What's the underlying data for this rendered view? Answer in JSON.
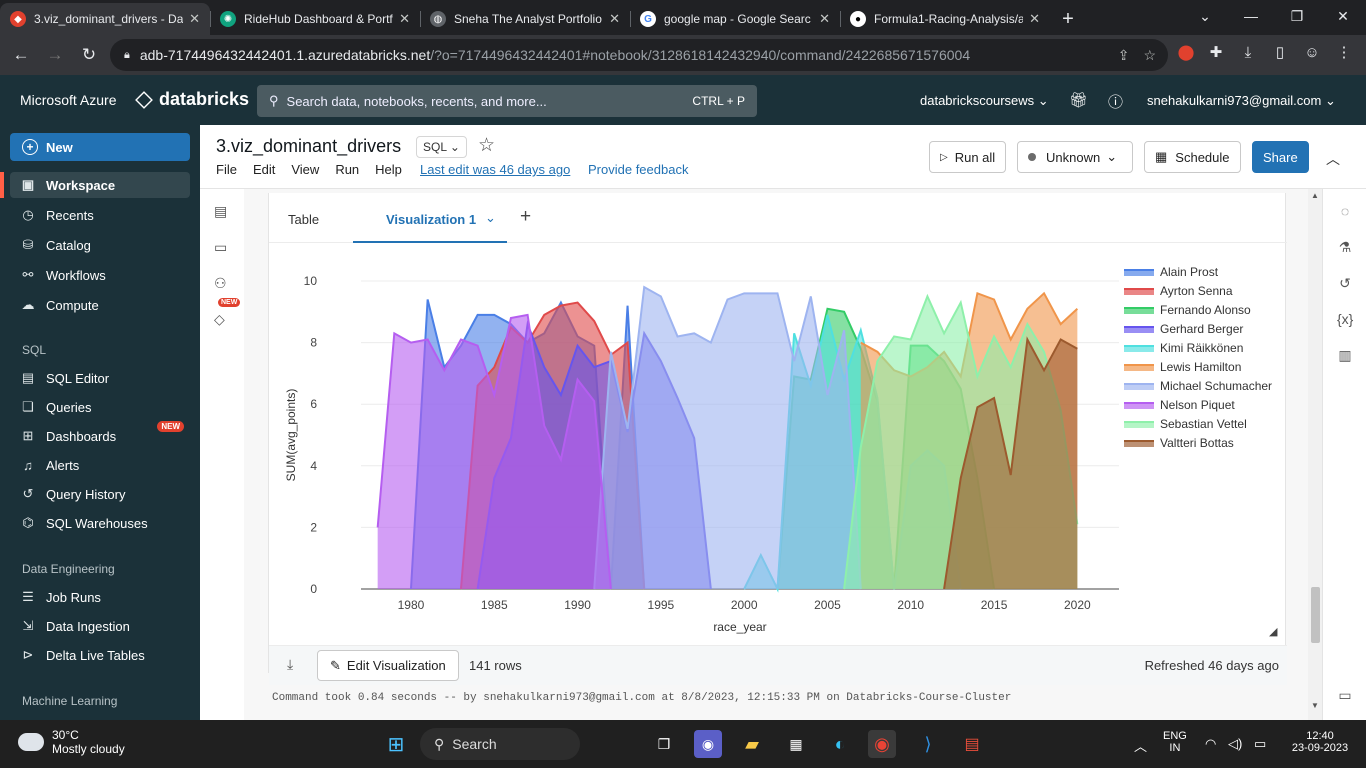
{
  "browser": {
    "tabs": [
      {
        "title": "3.viz_dominant_drivers - Dat",
        "icon": "databricks-logo",
        "color": "#e1412e"
      },
      {
        "title": "RideHub Dashboard & Portf",
        "icon": "openai-logo",
        "color": "#10a37f"
      },
      {
        "title": "Sneha The Analyst Portfolio",
        "icon": "globe-icon",
        "color": "#5f6368"
      },
      {
        "title": "google map - Google Searc",
        "icon": "google-logo",
        "color": "#4285f4"
      },
      {
        "title": "Formula1-Racing-Analysis/a",
        "icon": "github-logo",
        "color": "#ffffff"
      }
    ],
    "url_host": "adb-7174496432442401.1.azuredatabricks.net",
    "url_path": "/?o=7174496432442401#notebook/3128618142432940/command/2422685671576004"
  },
  "topbar": {
    "azure": "Microsoft Azure",
    "databricks": "databricks",
    "search_placeholder": "Search data, notebooks, recents, and more...",
    "search_shortcut": "CTRL + P",
    "workspace": "databrickscoursews",
    "user": "snehakulkarni973@gmail.com"
  },
  "sidebar": {
    "new_label": "New",
    "main_items": [
      {
        "label": "Workspace",
        "icon": "workspace-icon"
      },
      {
        "label": "Recents",
        "icon": "clock-icon"
      },
      {
        "label": "Catalog",
        "icon": "catalog-icon"
      },
      {
        "label": "Workflows",
        "icon": "workflows-icon"
      },
      {
        "label": "Compute",
        "icon": "cloud-icon"
      }
    ],
    "sql_heading": "SQL",
    "sql_items": [
      {
        "label": "SQL Editor"
      },
      {
        "label": "Queries"
      },
      {
        "label": "Dashboards",
        "badge": "NEW"
      },
      {
        "label": "Alerts"
      },
      {
        "label": "Query History"
      },
      {
        "label": "SQL Warehouses"
      }
    ],
    "de_heading": "Data Engineering",
    "de_items": [
      {
        "label": "Job Runs"
      },
      {
        "label": "Data Ingestion"
      },
      {
        "label": "Delta Live Tables"
      }
    ],
    "ml_heading": "Machine Learning"
  },
  "notebook": {
    "title": "3.viz_dominant_drivers",
    "language": "SQL",
    "menu": [
      "File",
      "Edit",
      "View",
      "Run",
      "Help"
    ],
    "last_edit": "Last edit was 46 days ago",
    "feedback": "Provide feedback",
    "run_all": "Run all",
    "cluster": "Unknown",
    "schedule": "Schedule",
    "share": "Share",
    "left_badge": "NEW"
  },
  "cell": {
    "tab_table": "Table",
    "tab_viz": "Visualization 1",
    "edit_viz": "Edit Visualization",
    "rows": "141 rows",
    "refreshed": "Refreshed 46 days ago",
    "command_line": "Command took 0.84 seconds -- by snehakulkarni973@gmail.com at 8/8/2023, 12:15:33 PM on Databricks-Course-Cluster"
  },
  "chart_data": {
    "type": "area",
    "xlabel": "race_year",
    "ylabel": "SUM(avg_points)",
    "xlim": [
      1977,
      2022.5
    ],
    "ylim": [
      0,
      10
    ],
    "x_ticks": [
      1980,
      1985,
      1990,
      1995,
      2000,
      2005,
      2010,
      2015,
      2020
    ],
    "y_ticks": [
      0,
      2,
      4,
      6,
      8,
      10
    ],
    "grid": true,
    "legend_position": "right",
    "series": [
      {
        "name": "Alain Prost",
        "color": "#4a7fe6",
        "points": [
          [
            1980,
            0
          ],
          [
            1981,
            9.4
          ],
          [
            1982,
            7.2
          ],
          [
            1983,
            7.9
          ],
          [
            1984,
            8.9
          ],
          [
            1985,
            8.9
          ],
          [
            1986,
            8.6
          ],
          [
            1987,
            8.0
          ],
          [
            1988,
            8.3
          ],
          [
            1989,
            9.3
          ],
          [
            1990,
            8.2
          ],
          [
            1991,
            7.9
          ],
          [
            1992,
            0
          ],
          [
            1993,
            9.2
          ],
          [
            1994,
            0
          ]
        ]
      },
      {
        "name": "Ayrton Senna",
        "color": "#e04a4a",
        "points": [
          [
            1983,
            0
          ],
          [
            1984,
            6.6
          ],
          [
            1985,
            7.2
          ],
          [
            1986,
            8.5
          ],
          [
            1987,
            8.0
          ],
          [
            1988,
            8.9
          ],
          [
            1989,
            9.2
          ],
          [
            1990,
            9.3
          ],
          [
            1991,
            8.7
          ],
          [
            1992,
            7.6
          ],
          [
            1993,
            8.0
          ],
          [
            1994,
            0
          ]
        ]
      },
      {
        "name": "Fernando Alonso",
        "color": "#33cc66",
        "points": [
          [
            2002,
            0
          ],
          [
            2003,
            6.9
          ],
          [
            2004,
            6.8
          ],
          [
            2005,
            9.1
          ],
          [
            2006,
            9.0
          ],
          [
            2007,
            7.8
          ],
          [
            2008,
            6.1
          ],
          [
            2009,
            0
          ],
          [
            2010,
            7.9
          ],
          [
            2011,
            7.9
          ],
          [
            2012,
            7.4
          ],
          [
            2013,
            6.5
          ],
          [
            2014,
            3.6
          ],
          [
            2015,
            0
          ]
        ]
      },
      {
        "name": "Gerhard Berger",
        "color": "#6655ee",
        "points": [
          [
            1984,
            0
          ],
          [
            1985,
            3.6
          ],
          [
            1986,
            4.9
          ],
          [
            1987,
            8.6
          ],
          [
            1988,
            7.2
          ],
          [
            1989,
            6.3
          ],
          [
            1990,
            7.9
          ],
          [
            1991,
            7.2
          ],
          [
            1992,
            7.4
          ],
          [
            1993,
            5.1
          ],
          [
            1994,
            8.3
          ],
          [
            1995,
            7.4
          ],
          [
            1996,
            6.2
          ],
          [
            1997,
            4.9
          ],
          [
            1998,
            0
          ]
        ]
      },
      {
        "name": "Kimi Räikkönen",
        "color": "#4fe0e0",
        "points": [
          [
            2000,
            0
          ],
          [
            2001,
            1.1
          ],
          [
            2002,
            0
          ],
          [
            2003,
            8.3
          ],
          [
            2004,
            6.6
          ],
          [
            2005,
            8.9
          ],
          [
            2006,
            6.8
          ],
          [
            2007,
            8.4
          ],
          [
            2008,
            6.2
          ],
          [
            2009,
            0
          ],
          [
            2010,
            4.0
          ],
          [
            2011,
            4.5
          ],
          [
            2012,
            4.0
          ],
          [
            2013,
            0
          ]
        ]
      },
      {
        "name": "Lewis Hamilton",
        "color": "#f0954a",
        "points": [
          [
            2007,
            8.0
          ],
          [
            2008,
            7.7
          ],
          [
            2009,
            7.1
          ],
          [
            2010,
            6.9
          ],
          [
            2011,
            7.2
          ],
          [
            2012,
            7.7
          ],
          [
            2013,
            6.9
          ],
          [
            2014,
            9.6
          ],
          [
            2015,
            9.4
          ],
          [
            2016,
            8.1
          ],
          [
            2017,
            9.1
          ],
          [
            2018,
            9.6
          ],
          [
            2019,
            8.6
          ],
          [
            2020,
            9.1
          ]
        ]
      },
      {
        "name": "Michael Schumacher",
        "color": "#9eb4f0",
        "points": [
          [
            1991,
            0
          ],
          [
            1992,
            7.7
          ],
          [
            1993,
            5.2
          ],
          [
            1994,
            9.8
          ],
          [
            1995,
            9.5
          ],
          [
            1996,
            8.2
          ],
          [
            1997,
            8.3
          ],
          [
            1998,
            8.0
          ],
          [
            1999,
            9.4
          ],
          [
            2000,
            9.6
          ],
          [
            2001,
            9.6
          ],
          [
            2002,
            9.6
          ],
          [
            2003,
            7.4
          ],
          [
            2004,
            9.5
          ],
          [
            2005,
            6.3
          ],
          [
            2006,
            8.4
          ],
          [
            2007,
            0
          ]
        ]
      },
      {
        "name": "Nelson Piquet",
        "color": "#b55ef0",
        "points": [
          [
            1978,
            2.0
          ],
          [
            1979,
            8.3
          ],
          [
            1980,
            8.0
          ],
          [
            1981,
            8.1
          ],
          [
            1982,
            7.1
          ],
          [
            1983,
            8.1
          ],
          [
            1984,
            7.9
          ],
          [
            1985,
            6.3
          ],
          [
            1986,
            8.8
          ],
          [
            1987,
            8.9
          ],
          [
            1988,
            5.3
          ],
          [
            1989,
            4.2
          ],
          [
            1990,
            6.8
          ],
          [
            1991,
            6.1
          ],
          [
            1992,
            0
          ]
        ]
      },
      {
        "name": "Sebastian Vettel",
        "color": "#8ef0aa",
        "points": [
          [
            2006,
            0
          ],
          [
            2007,
            4.6
          ],
          [
            2008,
            7.4
          ],
          [
            2009,
            8.2
          ],
          [
            2010,
            8.1
          ],
          [
            2011,
            9.5
          ],
          [
            2012,
            8.3
          ],
          [
            2013,
            9.3
          ],
          [
            2014,
            6.9
          ],
          [
            2015,
            8.2
          ],
          [
            2016,
            7.2
          ],
          [
            2017,
            8.6
          ],
          [
            2018,
            7.7
          ],
          [
            2019,
            5.8
          ],
          [
            2020,
            2.1
          ]
        ]
      },
      {
        "name": "Valtteri Bottas",
        "color": "#9c5a2e",
        "points": [
          [
            2012,
            0
          ],
          [
            2013,
            3.6
          ],
          [
            2014,
            5.9
          ],
          [
            2015,
            6.2
          ],
          [
            2016,
            3.7
          ],
          [
            2017,
            8.1
          ],
          [
            2018,
            7.1
          ],
          [
            2019,
            8.1
          ],
          [
            2020,
            7.8
          ]
        ]
      }
    ]
  },
  "taskbar": {
    "temp": "30°C",
    "weather": "Mostly cloudy",
    "search": "Search",
    "lang_1": "ENG",
    "lang_2": "IN",
    "time": "12:40",
    "date": "23-09-2023"
  }
}
